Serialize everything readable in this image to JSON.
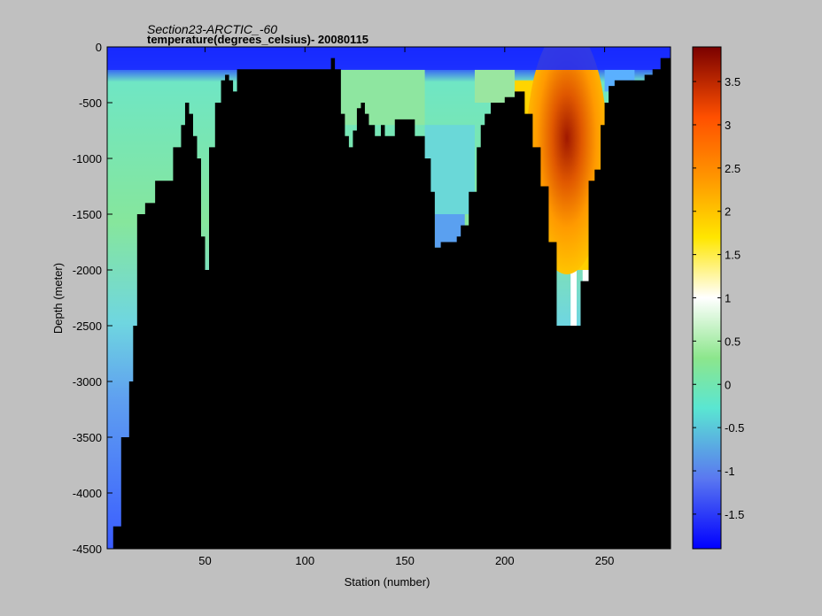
{
  "chart_data": {
    "type": "heatmap",
    "title": "Section23-ARCTIC_-60",
    "subtitle": "temperature(degrees_celsius)- 20080115",
    "xlabel": "Station (number)",
    "ylabel": "Depth (meter)",
    "xlim": [
      1,
      283
    ],
    "ylim": [
      -4500,
      0
    ],
    "x_ticks": [
      50,
      100,
      150,
      200,
      250
    ],
    "y_ticks": [
      0,
      -500,
      -1000,
      -1500,
      -2000,
      -2500,
      -3000,
      -3500,
      -4000,
      -4500
    ],
    "colorbar": {
      "range": [
        -1.9,
        3.9
      ],
      "ticks": [
        -1.5,
        -1,
        -0.5,
        0,
        0.5,
        1,
        1.5,
        2,
        2.5,
        3,
        3.5
      ],
      "tick_labels": [
        "-1.5",
        "-1",
        "-0.5",
        "0",
        "0.5",
        "1",
        "1.5",
        "2",
        "2.5",
        "3",
        "3.5"
      ],
      "colormap": "jet",
      "colors": [
        "#0000ff",
        "#5a78f0",
        "#5ae6d2",
        "#8ce68c",
        "#ffffff",
        "#ffe600",
        "#ff9600",
        "#ff5000",
        "#7a0000"
      ]
    },
    "bathymetry_color": "#000000",
    "background_color": "#c0c0c0",
    "profile": {
      "stations": [
        1,
        4,
        8,
        12,
        14,
        16,
        20,
        25,
        30,
        34,
        38,
        40,
        42,
        44,
        46,
        48,
        50,
        52,
        55,
        58,
        60,
        62,
        64,
        66,
        68,
        100,
        113,
        115,
        118,
        120,
        122,
        124,
        126,
        128,
        130,
        132,
        135,
        138,
        140,
        145,
        150,
        155,
        160,
        163,
        165,
        168,
        172,
        176,
        178,
        182,
        186,
        188,
        190,
        193,
        197,
        200,
        205,
        210,
        214,
        218,
        222,
        226,
        230,
        234,
        238,
        242,
        245,
        248,
        250,
        252,
        255,
        258,
        262,
        266,
        270,
        274,
        278,
        283
      ],
      "bottom_depth": [
        -4500,
        -4300,
        -3500,
        -3000,
        -2500,
        -1500,
        -1400,
        -1200,
        -1200,
        -900,
        -700,
        -500,
        -600,
        -800,
        -1000,
        -1700,
        -2000,
        -900,
        -500,
        -300,
        -250,
        -300,
        -400,
        -200,
        -200,
        -200,
        -100,
        -200,
        -600,
        -800,
        -900,
        -750,
        -550,
        -500,
        -600,
        -700,
        -800,
        -700,
        -800,
        -650,
        -650,
        -800,
        -1000,
        -1300,
        -1800,
        -1750,
        -1750,
        -1700,
        -1600,
        -1300,
        -900,
        -700,
        -600,
        -500,
        -500,
        -450,
        -400,
        -600,
        -900,
        -1250,
        -1750,
        -2500,
        -2500,
        -2500,
        -2100,
        -1200,
        -1100,
        -700,
        -500,
        -350,
        -300,
        -300,
        -300,
        -300,
        -250,
        -200,
        -100,
        -50
      ]
    },
    "features": {
      "surface_cold_layer_depth": -200,
      "atlantic_layer_core_max_temp": 3.9,
      "atlantic_layer_core_station": 232,
      "atlantic_layer_core_depth": -1100
    }
  }
}
